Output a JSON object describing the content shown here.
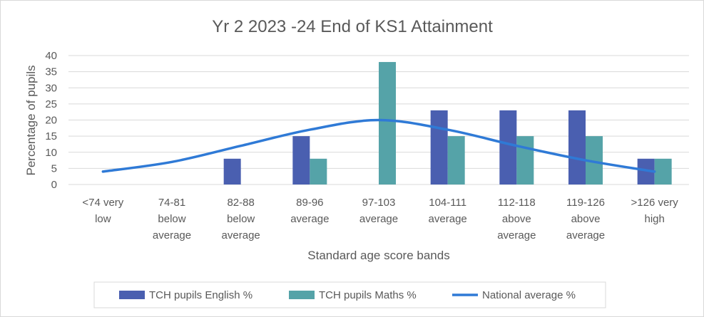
{
  "chart_data": {
    "type": "bar",
    "title": "Yr 2 2023 -24 End of KS1 Attainment",
    "xlabel": "Standard age score bands",
    "ylabel": "Percentage of pupils",
    "ylim": [
      0,
      40
    ],
    "yticks": [
      0,
      5,
      10,
      15,
      20,
      25,
      30,
      35,
      40
    ],
    "grid": true,
    "legend_position": "bottom",
    "categories": [
      [
        "<74 very",
        "low"
      ],
      [
        "74-81",
        "below",
        "average"
      ],
      [
        "82-88",
        "below",
        "average"
      ],
      [
        "89-96",
        "average"
      ],
      [
        "97-103",
        "average"
      ],
      [
        "104-111",
        "average"
      ],
      [
        "112-118",
        "above",
        "average"
      ],
      [
        "119-126",
        "above",
        "average"
      ],
      [
        ">126 very",
        "high"
      ]
    ],
    "series": [
      {
        "name": "TCH pupils English %",
        "type": "bar",
        "color": "#4a5fb0",
        "values": [
          0,
          0,
          8,
          15,
          0,
          23,
          23,
          23,
          8
        ]
      },
      {
        "name": "TCH pupils Maths %",
        "type": "bar",
        "color": "#55a3a8",
        "values": [
          0,
          0,
          0,
          8,
          38,
          15,
          15,
          15,
          8
        ]
      },
      {
        "name": "National average %",
        "type": "line",
        "color": "#2f7ad6",
        "values": [
          4,
          7,
          12,
          17,
          20,
          17,
          12,
          7.5,
          4
        ]
      }
    ]
  }
}
